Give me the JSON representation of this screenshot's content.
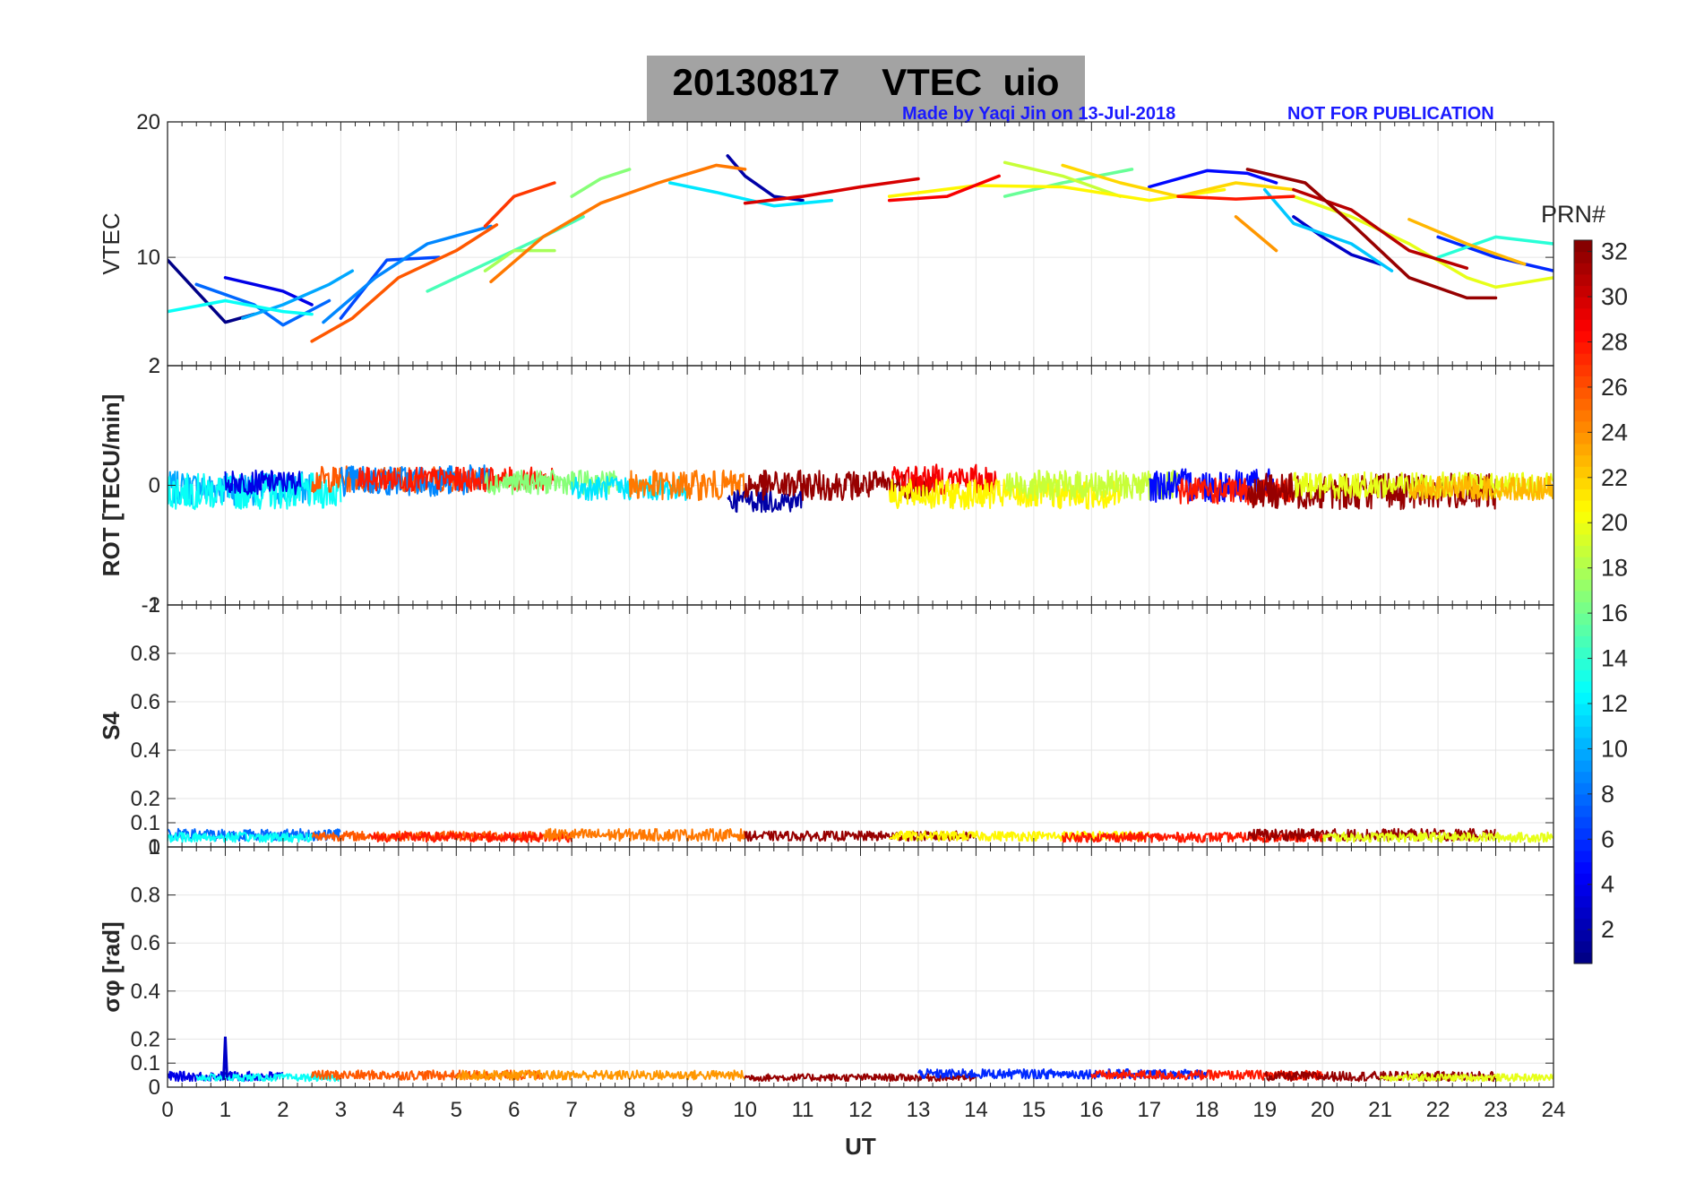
{
  "title": {
    "date": "20130817",
    "label": "VTEC  uio"
  },
  "credit": {
    "author": "Made by Yaqi Jin on 13-Jul-2018",
    "notice": "NOT FOR PUBLICATION"
  },
  "chart_data": {
    "type": "line",
    "x": {
      "label": "UT",
      "range": [
        0,
        24
      ],
      "ticks": [
        "0",
        "1",
        "2",
        "3",
        "4",
        "5",
        "6",
        "7",
        "8",
        "9",
        "10",
        "11",
        "12",
        "13",
        "14",
        "15",
        "16",
        "17",
        "18",
        "19",
        "20",
        "21",
        "22",
        "23",
        "24"
      ]
    },
    "colorbar": {
      "label": "PRN#",
      "range": [
        1,
        32
      ],
      "ticks": [
        "2",
        "4",
        "6",
        "8",
        "10",
        "12",
        "14",
        "16",
        "18",
        "20",
        "22",
        "24",
        "26",
        "28",
        "30",
        "32"
      ]
    },
    "panels": [
      {
        "id": "vtec",
        "ylabel": "VTEC",
        "ylim": [
          2,
          20
        ],
        "yticks": [
          "10",
          "20"
        ],
        "bottom_tick": "2",
        "series": [
          {
            "prn": 1,
            "points": [
              [
                0,
                9.8
              ],
              [
                0.5,
                7.5
              ],
              [
                1,
                5.2
              ],
              [
                1.5,
                5.8
              ]
            ]
          },
          {
            "prn": 2,
            "points": [
              [
                9.7,
                17.5
              ],
              [
                10,
                16
              ],
              [
                10.5,
                14.5
              ],
              [
                11,
                14.2
              ]
            ]
          },
          {
            "prn": 3,
            "points": [
              [
                19.5,
                13
              ],
              [
                20,
                11.5
              ],
              [
                20.5,
                10.2
              ],
              [
                21,
                9.5
              ]
            ]
          },
          {
            "prn": 4,
            "points": [
              [
                1,
                8.5
              ],
              [
                1.5,
                8
              ],
              [
                2,
                7.5
              ],
              [
                2.5,
                6.5
              ]
            ]
          },
          {
            "prn": 5,
            "points": [
              [
                17,
                15.2
              ],
              [
                18,
                16.4
              ],
              [
                18.7,
                16.2
              ],
              [
                19.2,
                15.5
              ]
            ]
          },
          {
            "prn": 6,
            "points": [
              [
                22,
                11.5
              ],
              [
                23,
                10
              ],
              [
                24,
                9
              ]
            ]
          },
          {
            "prn": 7,
            "points": [
              [
                3,
                5.5
              ],
              [
                3.8,
                9.8
              ],
              [
                4.7,
                10
              ]
            ]
          },
          {
            "prn": 8,
            "points": [
              [
                0.5,
                8
              ],
              [
                1.5,
                6.5
              ],
              [
                2,
                5
              ],
              [
                2.8,
                6.8
              ]
            ]
          },
          {
            "prn": 9,
            "points": [
              [
                2.7,
                5.2
              ],
              [
                3.6,
                8.5
              ],
              [
                4.5,
                11
              ],
              [
                5.6,
                12.3
              ]
            ]
          },
          {
            "prn": 10,
            "points": [
              [
                1.3,
                5.5
              ],
              [
                2,
                6.5
              ],
              [
                2.8,
                8
              ],
              [
                3.2,
                9
              ]
            ]
          },
          {
            "prn": 11,
            "points": [
              [
                19,
                15
              ],
              [
                19.5,
                12.5
              ],
              [
                20.5,
                11
              ],
              [
                21.2,
                9
              ]
            ]
          },
          {
            "prn": 12,
            "points": [
              [
                8.7,
                15.5
              ],
              [
                9.5,
                14.8
              ],
              [
                10.5,
                13.8
              ],
              [
                11.5,
                14.2
              ]
            ]
          },
          {
            "prn": 13,
            "points": [
              [
                0,
                6
              ],
              [
                1,
                6.8
              ],
              [
                2,
                6
              ],
              [
                2.5,
                5.8
              ]
            ]
          },
          {
            "prn": 14,
            "points": [
              [
                22,
                10
              ],
              [
                23,
                11.5
              ],
              [
                24,
                11
              ]
            ]
          },
          {
            "prn": 15,
            "points": [
              [
                4.5,
                7.5
              ],
              [
                5.5,
                9.5
              ],
              [
                6.5,
                11.5
              ],
              [
                7.2,
                13
              ]
            ]
          },
          {
            "prn": 16,
            "points": [
              [
                14.5,
                14.5
              ],
              [
                15.5,
                15.5
              ],
              [
                16.7,
                16.5
              ]
            ]
          },
          {
            "prn": 17,
            "points": [
              [
                7,
                14.5
              ],
              [
                7.5,
                15.8
              ],
              [
                8,
                16.5
              ]
            ]
          },
          {
            "prn": 18,
            "points": [
              [
                5.5,
                9
              ],
              [
                6,
                10.5
              ],
              [
                6.7,
                10.5
              ]
            ]
          },
          {
            "prn": 19,
            "points": [
              [
                14.5,
                17
              ],
              [
                15.5,
                16
              ],
              [
                16.5,
                14.5
              ]
            ]
          },
          {
            "prn": 20,
            "points": [
              [
                19.5,
                14.5
              ],
              [
                20.5,
                13
              ],
              [
                21.5,
                11
              ],
              [
                22.5,
                8.5
              ],
              [
                23,
                7.8
              ],
              [
                24,
                8.5
              ]
            ]
          },
          {
            "prn": 21,
            "points": [
              [
                12.5,
                14.5
              ],
              [
                14,
                15.3
              ],
              [
                15.5,
                15.2
              ],
              [
                17,
                14.2
              ],
              [
                18.3,
                15
              ]
            ]
          },
          {
            "prn": 22,
            "points": [
              [
                15.5,
                16.8
              ],
              [
                16.5,
                15.5
              ],
              [
                17.5,
                14.5
              ],
              [
                18.5,
                15.5
              ],
              [
                19.5,
                15
              ]
            ]
          },
          {
            "prn": 23,
            "points": [
              [
                21.5,
                12.8
              ],
              [
                22.5,
                11
              ],
              [
                23.5,
                9.5
              ]
            ]
          },
          {
            "prn": 24,
            "points": [
              [
                18.5,
                13
              ],
              [
                19.2,
                10.5
              ]
            ]
          },
          {
            "prn": 25,
            "points": [
              [
                5.6,
                8.2
              ],
              [
                6.5,
                11.5
              ],
              [
                7.5,
                14
              ],
              [
                8.5,
                15.5
              ],
              [
                9.5,
                16.8
              ],
              [
                10,
                16.5
              ]
            ]
          },
          {
            "prn": 26,
            "points": [
              [
                2.5,
                3.8
              ],
              [
                3.2,
                5.5
              ],
              [
                4,
                8.5
              ],
              [
                5,
                10.5
              ],
              [
                5.7,
                12.4
              ]
            ]
          },
          {
            "prn": 27,
            "points": [
              [
                5.5,
                12.3
              ],
              [
                6,
                14.5
              ],
              [
                6.7,
                15.5
              ]
            ]
          },
          {
            "prn": 28,
            "points": [
              [
                17.5,
                14.5
              ],
              [
                18.5,
                14.3
              ],
              [
                19.5,
                14.5
              ]
            ]
          },
          {
            "prn": 29,
            "points": [
              [
                12.5,
                14.2
              ],
              [
                13.5,
                14.5
              ],
              [
                14.4,
                16
              ]
            ]
          },
          {
            "prn": 30,
            "points": [
              [
                10,
                14
              ],
              [
                11,
                14.5
              ],
              [
                12,
                15.2
              ],
              [
                13,
                15.8
              ]
            ]
          },
          {
            "prn": 31,
            "points": [
              [
                19.5,
                15
              ],
              [
                20.5,
                13.5
              ],
              [
                21.5,
                10.5
              ],
              [
                22.5,
                9.2
              ]
            ]
          },
          {
            "prn": 32,
            "points": [
              [
                18.7,
                16.5
              ],
              [
                19.7,
                15.5
              ],
              [
                20.5,
                12.5
              ],
              [
                21.5,
                8.5
              ],
              [
                22.5,
                7
              ],
              [
                23,
                7
              ]
            ]
          }
        ]
      },
      {
        "id": "rot",
        "ylabel": "ROT [TECU/min]",
        "ylim": [
          -2,
          2
        ],
        "yticks": [
          "0"
        ],
        "top_tick": "2",
        "bottom_tick": "-2",
        "traces": [
          {
            "prn": 10,
            "start": 0,
            "end": 2.5,
            "center": -0.05,
            "amp": 0.28
          },
          {
            "prn": 13,
            "start": 0,
            "end": 3,
            "center": -0.1,
            "amp": 0.3
          },
          {
            "prn": 4,
            "start": 1,
            "end": 2.3,
            "center": 0.05,
            "amp": 0.2
          },
          {
            "prn": 26,
            "start": 2.5,
            "end": 5.6,
            "center": 0.1,
            "amp": 0.22
          },
          {
            "prn": 9,
            "start": 3,
            "end": 5.6,
            "center": 0.08,
            "amp": 0.26
          },
          {
            "prn": 28,
            "start": 3.3,
            "end": 6.7,
            "center": 0.1,
            "amp": 0.2
          },
          {
            "prn": 17,
            "start": 5.5,
            "end": 7.8,
            "center": 0.05,
            "amp": 0.2
          },
          {
            "prn": 12,
            "start": 7,
            "end": 9,
            "center": -0.05,
            "amp": 0.2
          },
          {
            "prn": 25,
            "start": 8,
            "end": 10,
            "center": 0,
            "amp": 0.25
          },
          {
            "prn": 2,
            "start": 9.7,
            "end": 11,
            "center": -0.25,
            "amp": 0.2
          },
          {
            "prn": 32,
            "start": 10,
            "end": 13.3,
            "center": 0,
            "amp": 0.25
          },
          {
            "prn": 29,
            "start": 12.5,
            "end": 14.4,
            "center": 0.1,
            "amp": 0.25
          },
          {
            "prn": 21,
            "start": 12.5,
            "end": 16.5,
            "center": -0.15,
            "amp": 0.25
          },
          {
            "prn": 19,
            "start": 14.5,
            "end": 17.5,
            "center": 0,
            "amp": 0.25
          },
          {
            "prn": 5,
            "start": 17,
            "end": 19.2,
            "center": 0,
            "amp": 0.28
          },
          {
            "prn": 28,
            "start": 17.5,
            "end": 19.5,
            "center": -0.1,
            "amp": 0.22
          },
          {
            "prn": 32,
            "start": 18.7,
            "end": 23,
            "center": -0.1,
            "amp": 0.3
          },
          {
            "prn": 20,
            "start": 19.5,
            "end": 24,
            "center": 0,
            "amp": 0.22
          },
          {
            "prn": 23,
            "start": 21.5,
            "end": 24,
            "center": -0.05,
            "amp": 0.2
          }
        ]
      },
      {
        "id": "s4",
        "ylabel": "S4",
        "ylim": [
          0,
          1
        ],
        "yticks": [
          "0.1",
          "0.2",
          "0.4",
          "0.6",
          "0.8"
        ],
        "top_tick": "1",
        "bottom_tick": "0",
        "traces": [
          {
            "prn": 8,
            "start": 0,
            "end": 3,
            "center": 0.05,
            "amp": 0.025
          },
          {
            "prn": 13,
            "start": 0,
            "end": 2.5,
            "center": 0.04,
            "amp": 0.02
          },
          {
            "prn": 26,
            "start": 2.5,
            "end": 6.5,
            "center": 0.045,
            "amp": 0.02
          },
          {
            "prn": 28,
            "start": 3.5,
            "end": 7,
            "center": 0.04,
            "amp": 0.02
          },
          {
            "prn": 25,
            "start": 6.5,
            "end": 10,
            "center": 0.05,
            "amp": 0.025
          },
          {
            "prn": 32,
            "start": 10,
            "end": 14,
            "center": 0.045,
            "amp": 0.02
          },
          {
            "prn": 21,
            "start": 12.5,
            "end": 17,
            "center": 0.045,
            "amp": 0.02
          },
          {
            "prn": 28,
            "start": 15.5,
            "end": 20,
            "center": 0.04,
            "amp": 0.02
          },
          {
            "prn": 32,
            "start": 18.7,
            "end": 23,
            "center": 0.05,
            "amp": 0.025
          },
          {
            "prn": 20,
            "start": 20,
            "end": 24,
            "center": 0.04,
            "amp": 0.02
          }
        ]
      },
      {
        "id": "sigma_phi",
        "ylabel": "σφ [rad]",
        "ylim": [
          0,
          1
        ],
        "yticks": [
          "0",
          "0.1",
          "0.2",
          "0.4",
          "0.6",
          "0.8"
        ],
        "top_tick": "1",
        "traces": [
          {
            "prn": 4,
            "start": 0,
            "end": 2,
            "center": 0.045,
            "amp": 0.02
          },
          {
            "prn": 13,
            "start": 0.5,
            "end": 3,
            "center": 0.04,
            "amp": 0.015
          },
          {
            "prn": 26,
            "start": 2.5,
            "end": 6.5,
            "center": 0.05,
            "amp": 0.02
          },
          {
            "prn": 24,
            "start": 5,
            "end": 10,
            "center": 0.05,
            "amp": 0.02
          },
          {
            "prn": 32,
            "start": 10,
            "end": 14,
            "center": 0.04,
            "amp": 0.015
          },
          {
            "prn": 6,
            "start": 13,
            "end": 18,
            "center": 0.055,
            "amp": 0.02
          },
          {
            "prn": 28,
            "start": 16,
            "end": 20,
            "center": 0.05,
            "amp": 0.02
          },
          {
            "prn": 32,
            "start": 19,
            "end": 23,
            "center": 0.045,
            "amp": 0.02
          },
          {
            "prn": 20,
            "start": 21,
            "end": 24,
            "center": 0.04,
            "amp": 0.015
          }
        ],
        "spikes": [
          {
            "prn": 3,
            "t": 1.0,
            "value": 0.21
          }
        ]
      }
    ]
  }
}
